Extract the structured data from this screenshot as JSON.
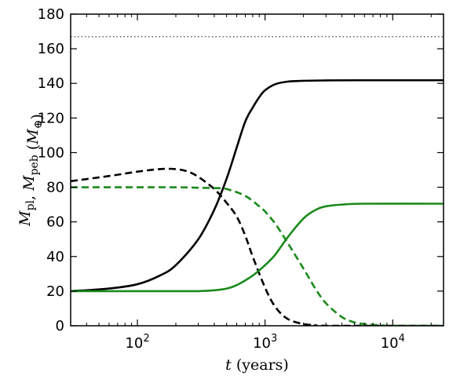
{
  "chart_data": {
    "type": "line",
    "xscale": "log",
    "xlim": [
      30,
      25000
    ],
    "ylim": [
      0,
      180
    ],
    "xlabel": "t (years)",
    "ylabel": "M_pl, M_peb (M_⊕)",
    "grid": false,
    "x_ticks": [
      100,
      1000,
      10000
    ],
    "x_tick_labels": [
      "10^2",
      "10^3",
      "10^4"
    ],
    "y_ticks": [
      0,
      20,
      40,
      60,
      80,
      100,
      120,
      140,
      160,
      180
    ],
    "hline": {
      "y": 167,
      "style": "dotted",
      "color": "#555555"
    },
    "series": [
      {
        "style": "solid",
        "color": "#000000",
        "x": [
          30,
          60,
          100,
          150,
          200,
          300,
          400,
          500,
          600,
          700,
          800,
          900,
          1000,
          1200,
          1500,
          2000,
          3000,
          5000,
          25000
        ],
        "y": [
          20,
          21.5,
          24,
          29,
          35,
          50,
          67,
          85,
          103,
          118,
          126,
          132,
          136,
          139.5,
          141,
          141.5,
          141.7,
          141.8,
          141.8
        ]
      },
      {
        "style": "dashed",
        "color": "#000000",
        "x": [
          30,
          60,
          100,
          150,
          200,
          250,
          300,
          400,
          500,
          600,
          700,
          800,
          1000,
          1200,
          1500,
          2000,
          2500,
          3000,
          25000
        ],
        "y": [
          83.5,
          86.5,
          89,
          90.5,
          90.5,
          89,
          86,
          79,
          71,
          63,
          52,
          40,
          22,
          11,
          4,
          1,
          0.3,
          0,
          0
        ]
      },
      {
        "style": "solid",
        "color": "#1a8a1a",
        "x": [
          30,
          100,
          200,
          300,
          400,
          500,
          600,
          800,
          1000,
          1200,
          1500,
          2000,
          2500,
          3000,
          4000,
          6000,
          25000
        ],
        "y": [
          20,
          20,
          20,
          20,
          20.5,
          21.5,
          23.5,
          29,
          35,
          41,
          51,
          62,
          67,
          69,
          70,
          70.5,
          70.5
        ]
      },
      {
        "style": "dashed",
        "color": "#1a8a1a",
        "x": [
          30,
          100,
          200,
          300,
          400,
          500,
          700,
          900,
          1000,
          1200,
          1500,
          2000,
          2500,
          3000,
          4000,
          5000,
          6000,
          8000,
          10000,
          25000
        ],
        "y": [
          80,
          80,
          80,
          79.7,
          79.5,
          79,
          75,
          69,
          66,
          59,
          48,
          33,
          21,
          13,
          5,
          2,
          1,
          0.3,
          0,
          0
        ]
      }
    ]
  }
}
